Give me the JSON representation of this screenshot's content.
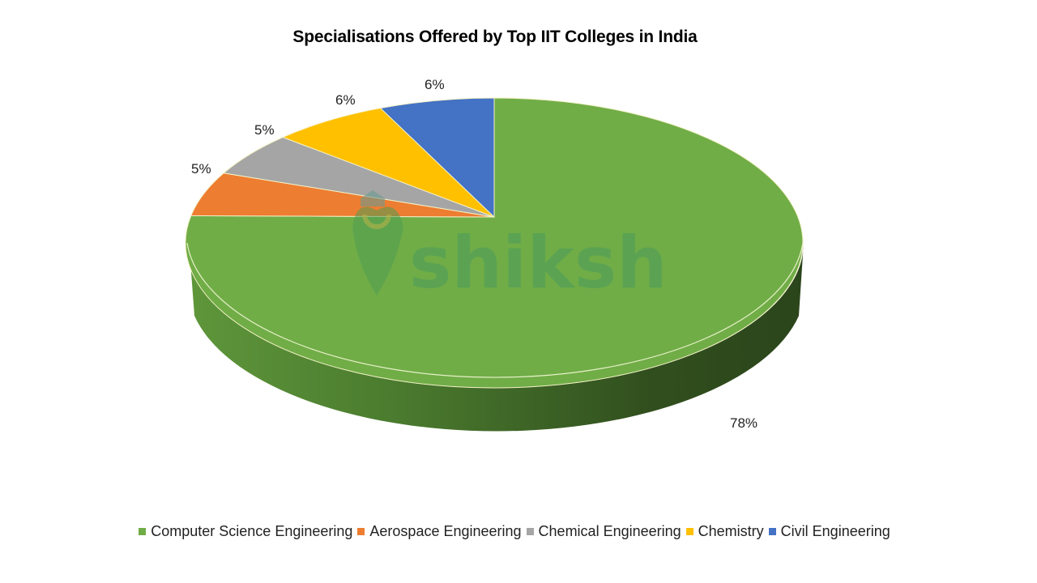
{
  "chart_data": {
    "type": "pie",
    "variant": "3d",
    "title": "Specialisations Offered by Top IIT Colleges in India",
    "categories": [
      "Computer Science Engineering",
      "Aerospace Engineering",
      "Chemical Engineering",
      "Chemistry",
      "Civil Engineering"
    ],
    "values": [
      78,
      5,
      5,
      6,
      6
    ],
    "unit": "%",
    "colors": [
      "#70ad47",
      "#ed7d31",
      "#a5a5a5",
      "#ffc000",
      "#4472c4"
    ],
    "data_labels": [
      "78%",
      "5%",
      "5%",
      "6%",
      "6%"
    ],
    "legend_position": "bottom"
  },
  "title": "Specialisations Offered by Top IIT Colleges in India",
  "labels": {
    "cse": "78%",
    "aero": "5%",
    "chem_eng": "5%",
    "chemistry": "6%",
    "civil": "6%"
  },
  "legend": [
    {
      "label": "Computer Science Engineering",
      "color": "#70ad47"
    },
    {
      "label": "Aerospace Engineering",
      "color": "#ed7d31"
    },
    {
      "label": "Chemical Engineering",
      "color": "#a5a5a5"
    },
    {
      "label": "Chemistry",
      "color": "#ffc000"
    },
    {
      "label": "Civil Engineering",
      "color": "#4472c4"
    }
  ],
  "watermark": {
    "text": "shiksha"
  }
}
